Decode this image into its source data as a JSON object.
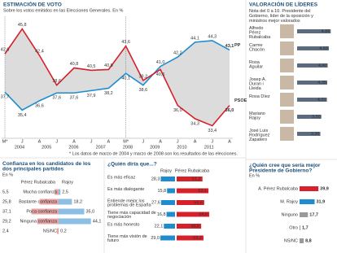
{
  "chart_data": [
    {
      "type": "line",
      "title": "ESTIMACIÓN DE VOTO",
      "subtitle": "Sobre los votos emitidos en las Elecciones Generales. En %",
      "categories": [
        "M*",
        "J",
        "A",
        "J",
        "A",
        "J",
        "A",
        "M*",
        "J",
        "A",
        "J",
        "A",
        "J",
        "A"
      ],
      "years": [
        "2004",
        "2005",
        "2006",
        "2007",
        "2008",
        "2009",
        "2010",
        "2011"
      ],
      "ylim": [
        32,
        47
      ],
      "series": [
        {
          "name": "PP",
          "color": "#1f8ccf",
          "values": [
            37.7,
            35.4,
            36.6,
            37.6,
            37.6,
            37.9,
            38.2,
            40.1,
            38.6,
            41.0,
            42.2,
            44.1,
            44.3,
            43.1
          ],
          "value_labels": [
            "37,7",
            "35,4",
            "36,6",
            "37,6",
            "37,6",
            "37,9",
            "38,2",
            "40,1",
            "38,6",
            "41,0",
            "42,2",
            "44,1",
            "44,3",
            "43,1"
          ]
        },
        {
          "name": "PSOE",
          "color": "#d6202a",
          "values": [
            42.6,
            45.8,
            42.4,
            38.6,
            40.8,
            40.5,
            40.6,
            43.6,
            39.2,
            40.6,
            36.0,
            34.3,
            33.4,
            36.0
          ],
          "value_labels": [
            "42,6",
            "45,8",
            "42,4",
            "38,6",
            "40,8",
            "40,5",
            "40,6",
            "43,6",
            "39,2",
            "40,6",
            "36,0",
            "34,3",
            "33,4",
            "36,0"
          ]
        }
      ],
      "note": "* Los datos de marzo de 2004 y marzo de 2008 son los resultados de las elecciones."
    },
    {
      "type": "hbar",
      "title": "VALORACIÓN DE LÍDERES",
      "subtitle": "Nota del 0 a 10. Presidente del Gobierno, líder de la oposición y ministros mejor valorados",
      "categories": [
        "Alfredo Pérez Rubalcaba",
        "Carme Chacón",
        "Rosa Aguilar",
        "Josep A. Duran i Lleida",
        "Rosa Díez",
        "Mariano Rajoy",
        "José Luis Rodríguez Zapatero"
      ],
      "values": [
        4.86,
        4.59,
        4.42,
        4.35,
        4.31,
        3.5,
        3.36
      ],
      "value_labels": [
        "4,86",
        "4,59",
        "4,42",
        "4,35",
        "4,31",
        "3,50",
        "3,36"
      ],
      "color": "#5a6b80"
    },
    {
      "type": "pref",
      "title": "¿Quién cree que sería mejor Presidente de Gobierno?",
      "subtitle": "En %",
      "categories": [
        "A. Pérez Rubalcaba",
        "M. Rajoy",
        "Ninguno",
        "Otro",
        "NS/NC"
      ],
      "values": [
        39.9,
        31.9,
        17.7,
        1.7,
        8.8
      ],
      "value_labels": [
        "39,9",
        "31,9",
        "17,7",
        "1,7",
        "8,8"
      ],
      "colors": [
        "#d6202a",
        "#1f8ccf",
        "#9a9a9a",
        "#9a9a9a",
        "#9a9a9a"
      ]
    },
    {
      "type": "confidence",
      "title": "Confianza en los candidatos de los dos principales partidos",
      "subtitle": "En %",
      "categories": [
        "Mucha confianza",
        "Bastante confianza",
        "Poca confianza",
        "Ninguna confianza",
        "NS/NC"
      ],
      "series": [
        {
          "name": "Pérez Rubalcaba",
          "color": "#e8a5a5",
          "values": [
            5.5,
            25.8,
            37.1,
            29.2,
            2.4
          ],
          "value_labels": [
            "5,5",
            "25,8",
            "37,1",
            "29,2",
            "2,4"
          ]
        },
        {
          "name": "Rajoy",
          "color": "#8cbfe3",
          "values": [
            2.5,
            18.2,
            35.0,
            44.1,
            0.2
          ],
          "value_labels": [
            "2,5",
            "18,2",
            "35,0",
            "44,1",
            "0,2"
          ]
        }
      ]
    },
    {
      "type": "versus",
      "title": "¿Quién diría que...?",
      "categories": [
        "Es más eficaz",
        "Es más dialogante",
        "Entiende mejor los problemas de España",
        "Tiene más capacidad de negociación",
        "Es más honesto",
        "Tiene más visión de futuro"
      ],
      "series": [
        {
          "name": "Rajoy",
          "color": "#1f8ccf",
          "values": [
            28.3,
            15.8,
            27.6,
            16.8,
            22.1,
            29.0
          ],
          "value_labels": [
            "28,3",
            "15,8",
            "27,6",
            "16,8",
            "22,1",
            "29,0"
          ]
        },
        {
          "name": "Pérez Rubalcaba",
          "color": "#d6202a",
          "values": [
            51.2,
            63.1,
            54.6,
            64.6,
            48.6,
            53.2
          ],
          "value_labels": [
            "51,2",
            "63,1",
            "54,6",
            "64,6",
            "48,6",
            "53,2"
          ]
        }
      ]
    }
  ]
}
